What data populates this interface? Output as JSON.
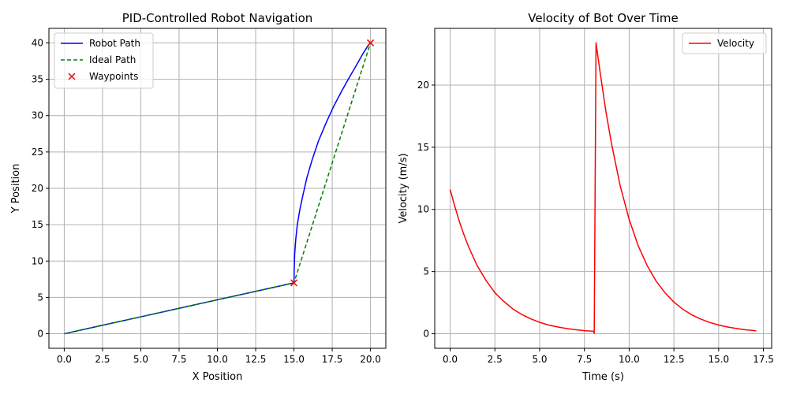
{
  "chart_data": [
    {
      "type": "line",
      "title": "PID-Controlled Robot Navigation",
      "xlabel": "X Position",
      "ylabel": "Y Position",
      "xlim": [
        -1.0,
        21.0
      ],
      "ylim": [
        -2.0,
        42.0
      ],
      "xticks": [
        0.0,
        2.5,
        5.0,
        7.5,
        10.0,
        12.5,
        15.0,
        17.5,
        20.0
      ],
      "xtick_labels": [
        "0.0",
        "2.5",
        "5.0",
        "7.5",
        "10.0",
        "12.5",
        "15.0",
        "17.5",
        "20.0"
      ],
      "yticks": [
        0,
        5,
        10,
        15,
        20,
        25,
        30,
        35,
        40
      ],
      "ytick_labels": [
        "0",
        "5",
        "10",
        "15",
        "20",
        "25",
        "30",
        "35",
        "40"
      ],
      "grid": true,
      "legend_position": "top-left",
      "series": [
        {
          "name": "Robot Path",
          "style": "solid",
          "color": "#0000ff",
          "points": [
            [
              0,
              0
            ],
            [
              2.5,
              1.17
            ],
            [
              5,
              2.33
            ],
            [
              7.5,
              3.5
            ],
            [
              10,
              4.67
            ],
            [
              12.5,
              5.83
            ],
            [
              14.7,
              6.86
            ],
            [
              15,
              7
            ],
            [
              15.02,
              9
            ],
            [
              15.05,
              11
            ],
            [
              15.12,
              13
            ],
            [
              15.22,
              15
            ],
            [
              15.38,
              17
            ],
            [
              15.58,
              19
            ],
            [
              15.85,
              21.5
            ],
            [
              16.2,
              24
            ],
            [
              16.6,
              26.5
            ],
            [
              17.1,
              29
            ],
            [
              17.6,
              31.3
            ],
            [
              18.1,
              33.3
            ],
            [
              18.6,
              35.2
            ],
            [
              19.1,
              37
            ],
            [
              19.5,
              38.5
            ],
            [
              19.8,
              39.5
            ],
            [
              20,
              40
            ]
          ]
        },
        {
          "name": "Ideal Path",
          "style": "dashed",
          "color": "#008000",
          "points": [
            [
              0,
              0
            ],
            [
              15,
              7
            ],
            [
              20,
              40
            ]
          ]
        },
        {
          "name": "Waypoints",
          "style": "marker-x",
          "color": "#ff0000",
          "points": [
            [
              15,
              7
            ],
            [
              20,
              40
            ]
          ]
        }
      ]
    },
    {
      "type": "line",
      "title": "Velocity of Bot Over Time",
      "xlabel": "Time (s)",
      "ylabel": "Velocity (m/s)",
      "xlim": [
        -0.86,
        17.96
      ],
      "ylim": [
        -1.17,
        24.56
      ],
      "xticks": [
        0.0,
        2.5,
        5.0,
        7.5,
        10.0,
        12.5,
        15.0,
        17.5
      ],
      "xtick_labels": [
        "0.0",
        "2.5",
        "5.0",
        "7.5",
        "10.0",
        "12.5",
        "15.0",
        "17.5"
      ],
      "yticks": [
        0,
        5,
        10,
        15,
        20
      ],
      "ytick_labels": [
        "0",
        "5",
        "10",
        "15",
        "20"
      ],
      "grid": true,
      "legend_position": "top-right",
      "series": [
        {
          "name": "Velocity",
          "style": "solid",
          "color": "#ff0000",
          "points": [
            [
              0,
              11.6
            ],
            [
              0.25,
              10.3
            ],
            [
              0.5,
              9.1
            ],
            [
              0.75,
              8.05
            ],
            [
              1.0,
              7.1
            ],
            [
              1.5,
              5.5
            ],
            [
              2.0,
              4.3
            ],
            [
              2.5,
              3.3
            ],
            [
              3.0,
              2.6
            ],
            [
              3.5,
              2.0
            ],
            [
              4.0,
              1.55
            ],
            [
              4.5,
              1.2
            ],
            [
              5.0,
              0.92
            ],
            [
              5.5,
              0.7
            ],
            [
              6.0,
              0.55
            ],
            [
              6.5,
              0.42
            ],
            [
              7.0,
              0.33
            ],
            [
              7.5,
              0.25
            ],
            [
              8.0,
              0.2
            ],
            [
              8.05,
              0.05
            ],
            [
              8.15,
              23.4
            ],
            [
              8.4,
              20.8
            ],
            [
              8.7,
              17.9
            ],
            [
              9.0,
              15.4
            ],
            [
              9.5,
              11.9
            ],
            [
              10.0,
              9.2
            ],
            [
              10.5,
              7.1
            ],
            [
              11.0,
              5.5
            ],
            [
              11.5,
              4.25
            ],
            [
              12.0,
              3.3
            ],
            [
              12.5,
              2.55
            ],
            [
              13.0,
              1.97
            ],
            [
              13.5,
              1.52
            ],
            [
              14.0,
              1.18
            ],
            [
              14.5,
              0.91
            ],
            [
              15.0,
              0.7
            ],
            [
              15.5,
              0.54
            ],
            [
              16.0,
              0.42
            ],
            [
              16.5,
              0.32
            ],
            [
              17.1,
              0.24
            ]
          ]
        }
      ]
    }
  ]
}
